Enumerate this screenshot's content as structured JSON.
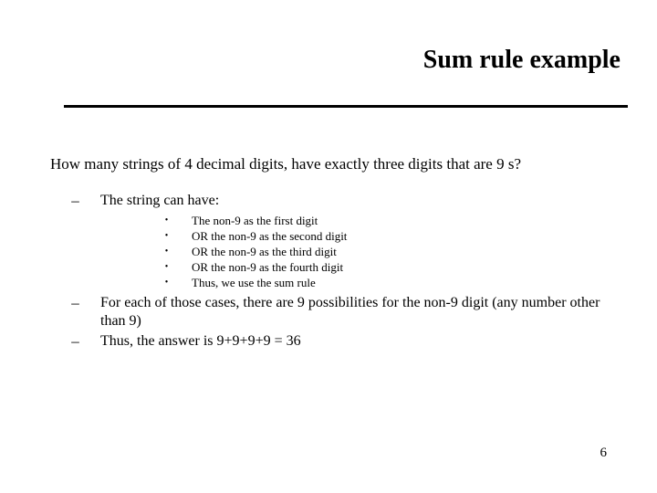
{
  "title": "Sum rule example",
  "question": "How many strings of 4 decimal digits, have exactly three digits that are 9 s?",
  "dash1": "The string can have:",
  "bullets": {
    "b1": "The non-9 as the first digit",
    "b2": "OR the non-9 as the second digit",
    "b3": "OR the non-9 as the third digit",
    "b4": "OR the non-9 as the fourth digit",
    "b5": "Thus, we use the sum rule"
  },
  "dash2": "For each of those cases, there are 9 possibilities for the non-9 digit (any number other than 9)",
  "dash3": "Thus, the answer is 9+9+9+9 = 36",
  "pagenum": "6",
  "marks": {
    "dash": "–",
    "bullet": "•"
  }
}
